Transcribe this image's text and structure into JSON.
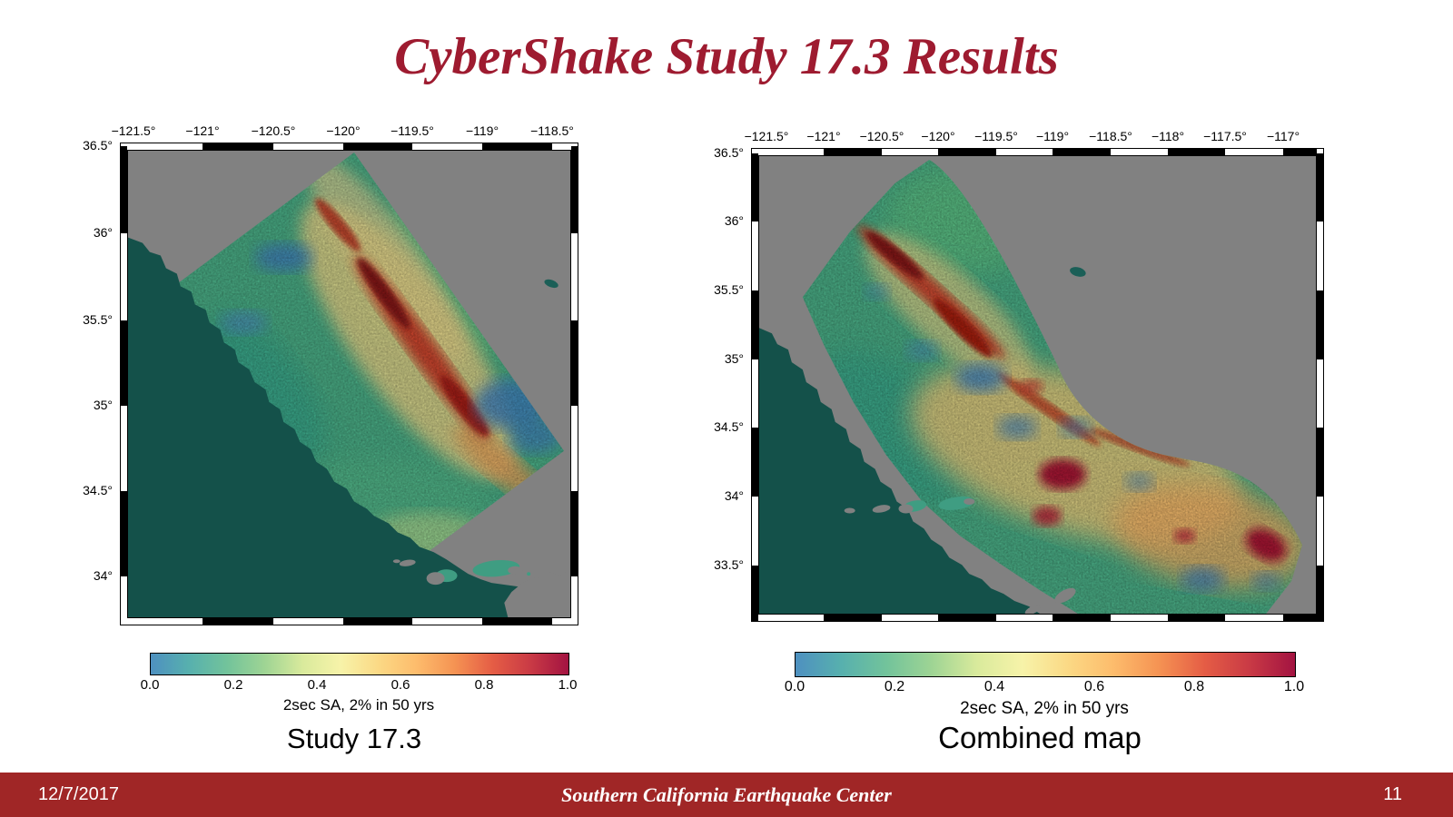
{
  "title": "CyberShake Study 17.3 Results",
  "maps": [
    {
      "name": "study-17-3",
      "caption": "Study 17.3",
      "x_ticks": [
        "−121.5°",
        "−121°",
        "−120.5°",
        "−120°",
        "−119.5°",
        "−119°",
        "−118.5°"
      ],
      "y_ticks": [
        "36.5°",
        "36°",
        "35.5°",
        "35°",
        "34.5°",
        "34°"
      ],
      "colorbar": {
        "ticks": [
          "0.0",
          "0.2",
          "0.4",
          "0.6",
          "0.8",
          "1.0"
        ],
        "label": "2sec SA, 2% in 50 yrs"
      }
    },
    {
      "name": "combined-map",
      "caption": "Combined map",
      "x_ticks": [
        "−121.5°",
        "−121°",
        "−120.5°",
        "−120°",
        "−119.5°",
        "−119°",
        "−118.5°",
        "−118°",
        "−117.5°",
        "−117°"
      ],
      "y_ticks": [
        "36.5°",
        "36°",
        "35.5°",
        "35°",
        "34.5°",
        "34°",
        "33.5°"
      ],
      "colorbar": {
        "ticks": [
          "0.0",
          "0.2",
          "0.4",
          "0.6",
          "0.8",
          "1.0"
        ],
        "label": "2sec SA, 2% in 50 yrs"
      }
    }
  ],
  "footer": {
    "date": "12/7/2017",
    "org": "Southern California Earthquake Center",
    "page": "11"
  },
  "colors": {
    "title_red": "#9e1b30",
    "footer_red": "#a02626",
    "ocean": "#14514a",
    "land_gray": "#818181",
    "swath_base": "#46a57f",
    "colorbar_stops": [
      "#4e90c0",
      "#57b0ae",
      "#72c39b",
      "#9ed494",
      "#d9ea9c",
      "#f7f3a9",
      "#fbd985",
      "#fdbc6c",
      "#f59353",
      "#e55d45",
      "#c93a45",
      "#a31341"
    ]
  }
}
